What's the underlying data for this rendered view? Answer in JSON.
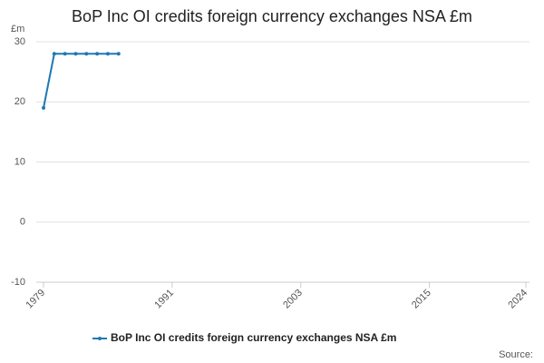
{
  "chart_data": {
    "type": "line",
    "title": "BoP Inc OI credits foreign currency exchanges NSA £m",
    "y_unit": "£m",
    "source": "Source:",
    "x": [
      1979,
      1980,
      1981,
      1982,
      1983,
      1984,
      1985,
      1986
    ],
    "series": [
      {
        "name": "BoP Inc OI credits foreign currency exchanges NSA £m",
        "color": "#1f78b4",
        "values": [
          19,
          28,
          28,
          28,
          28,
          28,
          28,
          28
        ]
      }
    ],
    "xlim": [
      1979,
      2024
    ],
    "xticks": [
      1979,
      1991,
      2003,
      2015,
      2024
    ],
    "ylim": [
      -10,
      30
    ],
    "yticks": [
      -10,
      0,
      10,
      20,
      30
    ],
    "grid": true,
    "legend": "bottom"
  }
}
